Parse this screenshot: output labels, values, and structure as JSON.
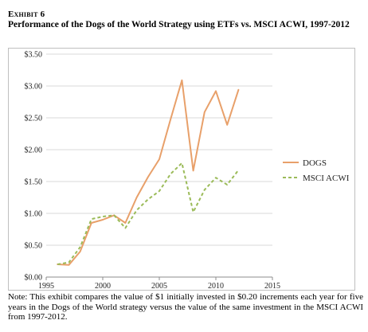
{
  "header": {
    "exhibit": "Exhibit 6",
    "title": "Performance of the Dogs of the World Strategy using ETFs vs. MSCI ACWI, 1997-2012"
  },
  "note": "Note: This exhibit compares the value of $1 initially invested in $0.20 increments each year for five years in the Dogs of the World strategy versus the value of the same investment in the MSCI ACWI from 1997-2012.",
  "colors": {
    "dogs": "#e8a06a",
    "msci": "#9bbb59",
    "grid": "#d9d9d9",
    "axis": "#8c8c8c"
  },
  "chart_data": {
    "type": "line",
    "title": "",
    "xlabel": "",
    "ylabel": "",
    "xlim": [
      1995,
      2015
    ],
    "ylim": [
      0,
      3.5
    ],
    "x_ticks": [
      1995,
      2000,
      2005,
      2010,
      2015
    ],
    "y_ticks": [
      0,
      0.5,
      1.0,
      1.5,
      2.0,
      2.5,
      3.0,
      3.5
    ],
    "y_tick_labels": [
      "$0.00",
      "$0.50",
      "$1.00",
      "$1.50",
      "$2.00",
      "$2.50",
      "$3.00",
      "$3.50"
    ],
    "grid": "horizontal",
    "legend_position": "right",
    "series": [
      {
        "name": "DOGS",
        "style": "solid",
        "color": "#e8a06a",
        "x": [
          1996,
          1997,
          1998,
          1999,
          2000,
          2001,
          2002,
          2003,
          2004,
          2005,
          2006,
          2007,
          2008,
          2009,
          2010,
          2011,
          2012
        ],
        "y": [
          0.2,
          0.19,
          0.4,
          0.85,
          0.9,
          0.97,
          0.85,
          1.25,
          1.57,
          1.85,
          2.48,
          3.09,
          1.67,
          2.59,
          2.92,
          2.39,
          2.94
        ]
      },
      {
        "name": "MSCI ACWI",
        "style": "dashed",
        "color": "#9bbb59",
        "x": [
          1996,
          1997,
          1998,
          1999,
          2000,
          2001,
          2002,
          2003,
          2004,
          2005,
          2006,
          2007,
          2008,
          2009,
          2010,
          2011,
          2012
        ],
        "y": [
          0.2,
          0.23,
          0.47,
          0.91,
          0.95,
          0.97,
          0.77,
          1.05,
          1.22,
          1.35,
          1.62,
          1.79,
          1.02,
          1.37,
          1.56,
          1.45,
          1.68
        ]
      }
    ]
  }
}
